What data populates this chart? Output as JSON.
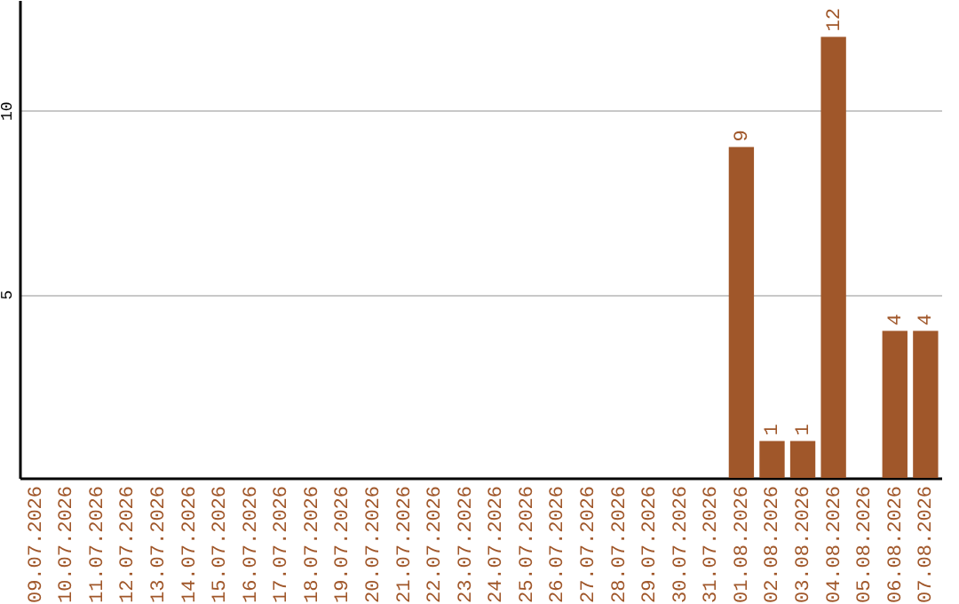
{
  "chart_data": {
    "type": "bar",
    "categories": [
      "09.07.2026",
      "10.07.2026",
      "11.07.2026",
      "12.07.2026",
      "13.07.2026",
      "14.07.2026",
      "15.07.2026",
      "16.07.2026",
      "17.07.2026",
      "18.07.2026",
      "19.07.2026",
      "20.07.2026",
      "21.07.2026",
      "22.07.2026",
      "23.07.2026",
      "24.07.2026",
      "25.07.2026",
      "26.07.2026",
      "27.07.2026",
      "28.07.2026",
      "29.07.2026",
      "30.07.2026",
      "31.07.2026",
      "01.08.2026",
      "02.08.2026",
      "03.08.2026",
      "04.08.2026",
      "05.08.2026",
      "06.08.2026",
      "07.08.2026"
    ],
    "values": [
      0,
      0,
      0,
      0,
      0,
      0,
      0,
      0,
      0,
      0,
      0,
      0,
      0,
      0,
      0,
      0,
      0,
      0,
      0,
      0,
      0,
      0,
      0,
      9,
      1,
      1,
      12,
      0,
      4,
      4
    ],
    "value_labels": [
      null,
      null,
      null,
      null,
      null,
      null,
      null,
      null,
      null,
      null,
      null,
      null,
      null,
      null,
      null,
      null,
      null,
      null,
      null,
      null,
      null,
      null,
      null,
      "9",
      "1",
      "1",
      "12",
      null,
      "4",
      "4"
    ],
    "color": "#a0572a",
    "ylim": [
      0,
      13
    ],
    "yticks": [
      5,
      10
    ],
    "grid": "y"
  }
}
